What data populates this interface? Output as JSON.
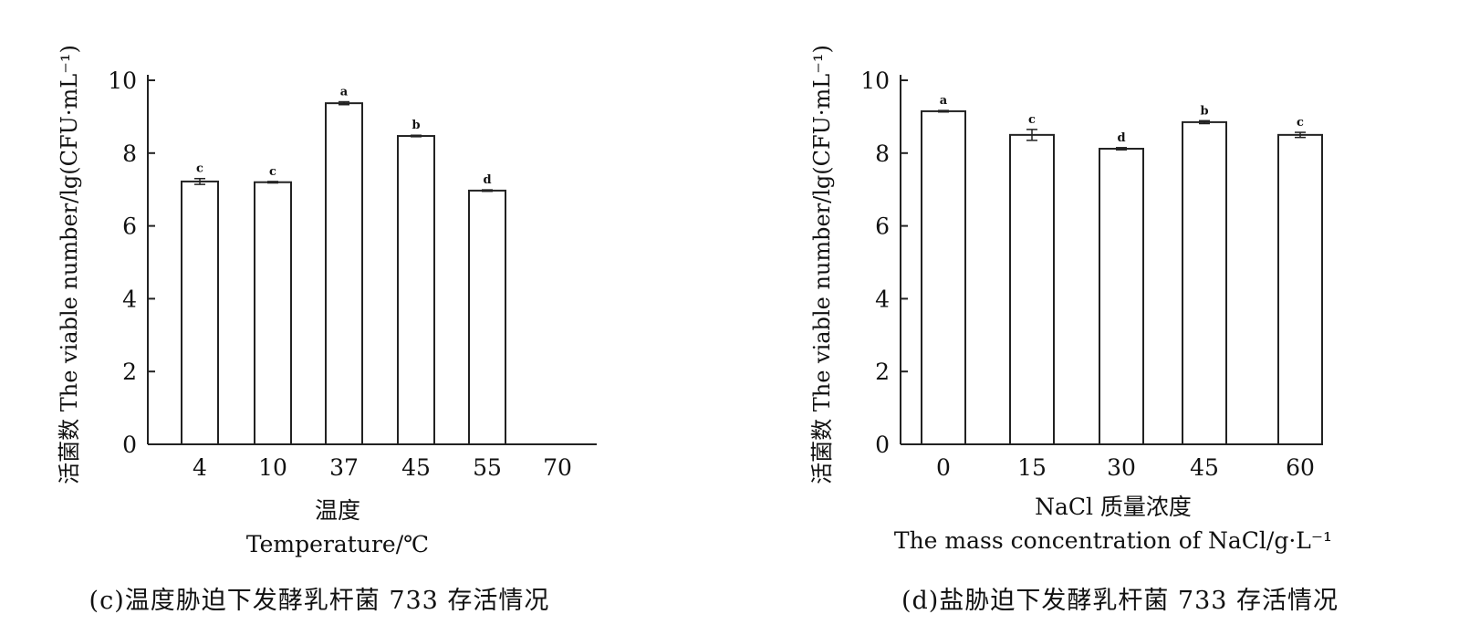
{
  "chart_data": [
    {
      "type": "bar",
      "categories": [
        "4",
        "10",
        "37",
        "45",
        "55",
        "70"
      ],
      "values": [
        7.22,
        7.2,
        9.37,
        8.47,
        6.97,
        0
      ],
      "errors": [
        0.08,
        0.02,
        0.04,
        0.02,
        0.02,
        0
      ],
      "significance": [
        "c",
        "c",
        "a",
        "b",
        "d",
        ""
      ],
      "ylabel": "活菌数 The viable number/lg(CFU·mL⁻¹)",
      "xlabel_cn": "温度",
      "xlabel_en": "Temperature/℃",
      "caption": "(c)温度胁迫下发酵乳杆菌 733 存活情况",
      "yticks": [
        "0",
        "2",
        "4",
        "6",
        "8",
        "10"
      ],
      "ylim": [
        0,
        10
      ]
    },
    {
      "type": "bar",
      "categories": [
        "0",
        "15",
        "30",
        "45",
        "60"
      ],
      "values": [
        9.15,
        8.5,
        8.12,
        8.85,
        8.5
      ],
      "errors": [
        0.02,
        0.15,
        0.03,
        0.04,
        0.07
      ],
      "significance": [
        "a",
        "c",
        "d",
        "b",
        "c"
      ],
      "ylabel": "活菌数 The viable number/lg(CFU·mL⁻¹)",
      "xlabel_cn": "NaCl 质量浓度",
      "xlabel_en": "The mass concentration of NaCl/g·L⁻¹",
      "caption": "(d)盐胁迫下发酵乳杆菌 733 存活情况",
      "yticks": [
        "0",
        "2",
        "4",
        "6",
        "8",
        "10"
      ],
      "ylim": [
        0,
        10
      ]
    }
  ]
}
